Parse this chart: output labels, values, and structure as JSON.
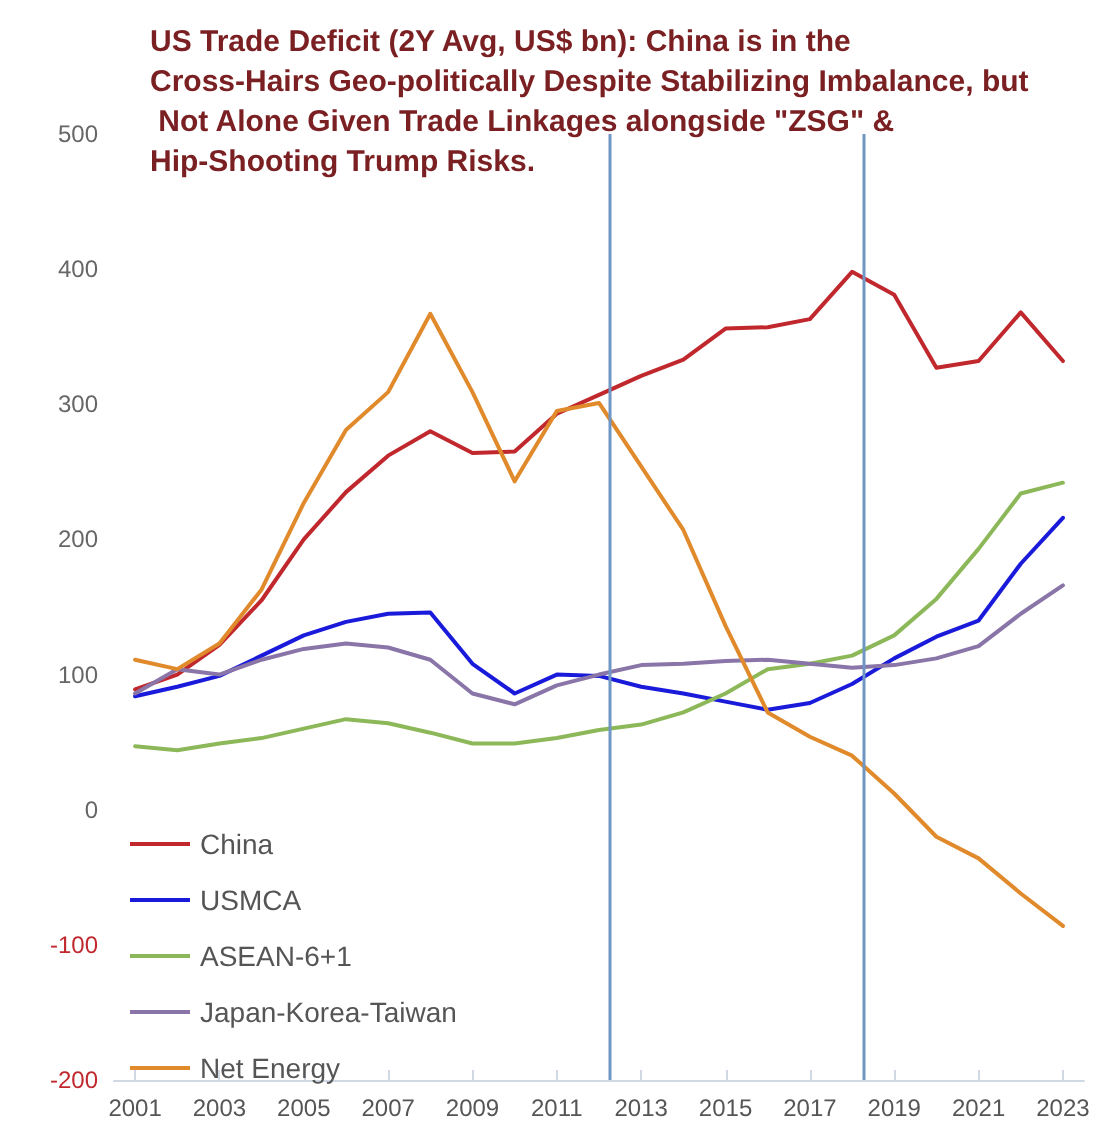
{
  "chart_data": {
    "type": "line",
    "title": "US Trade Deficit (2Y Avg, US$ bn): China is in the Cross-Hairs Geo-politically Despite Stabilizing Imbalance, but Not Alone Given Trade Linkages alongside \"ZSG\" & Hip-Shooting Trump Risks.",
    "x": [
      2001,
      2002,
      2003,
      2004,
      2005,
      2006,
      2007,
      2008,
      2009,
      2010,
      2011,
      2012,
      2013,
      2014,
      2015,
      2016,
      2017,
      2018,
      2019,
      2020,
      2021,
      2022,
      2023
    ],
    "series": [
      {
        "name": "China",
        "color": "#c0282d",
        "values": [
          89,
          100,
          122,
          155,
          200,
          235,
          262,
          280,
          264,
          265,
          293,
          307,
          321,
          333,
          356,
          357,
          363,
          398,
          381,
          327,
          332,
          368,
          332
        ]
      },
      {
        "name": "USMCA",
        "color": "#1a1adb",
        "values": [
          84,
          91,
          99,
          114,
          129,
          139,
          145,
          146,
          108,
          86,
          100,
          99,
          91,
          86,
          80,
          74,
          79,
          93,
          112,
          128,
          140,
          182,
          216
        ]
      },
      {
        "name": "ASEAN-6+1",
        "color": "#8db85a",
        "values": [
          47,
          44,
          49,
          53,
          60,
          67,
          64,
          57,
          49,
          49,
          53,
          59,
          63,
          72,
          86,
          104,
          108,
          114,
          129,
          156,
          193,
          234,
          242
        ]
      },
      {
        "name": "Japan-Korea-Taiwan",
        "color": "#8a75a8",
        "values": [
          86,
          104,
          100,
          111,
          119,
          123,
          120,
          111,
          86,
          78,
          92,
          100,
          107,
          108,
          110,
          111,
          108,
          105,
          107,
          112,
          121,
          145,
          166
        ]
      },
      {
        "name": "Net Energy",
        "color": "#e08a2c",
        "values": [
          111,
          104,
          123,
          163,
          227,
          281,
          309,
          367,
          309,
          243,
          295,
          301,
          254,
          207,
          136,
          72,
          54,
          40,
          12,
          -20,
          -36,
          -62,
          -86
        ]
      }
    ],
    "xlim": [
      2000.5,
      2023.5
    ],
    "xticks": [
      2001,
      2003,
      2005,
      2007,
      2009,
      2011,
      2013,
      2015,
      2017,
      2019,
      2021,
      2023
    ],
    "ylim": [
      -200,
      500
    ],
    "yticks": [
      -200,
      -100,
      0,
      100,
      200,
      300,
      400,
      500
    ],
    "ref_lines": [
      {
        "axis": "x",
        "value": 2012.25,
        "color": "#6f96c4"
      },
      {
        "axis": "x",
        "value": 2018.25,
        "color": "#6f96c4"
      }
    ],
    "grid": false,
    "legend": "bottom left",
    "marker": "none",
    "line_style": "solid"
  }
}
